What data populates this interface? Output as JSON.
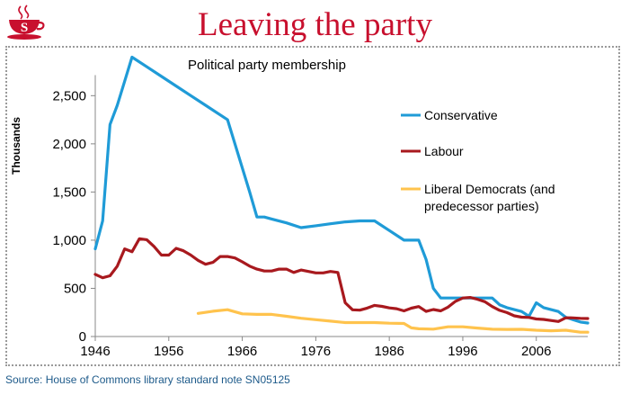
{
  "header": {
    "title": "Leaving the party",
    "logo_icon": "steaming-cup-s-logo",
    "logo_letter": "S"
  },
  "footer": {
    "source": "Source: House of Commons library standard note SN05125"
  },
  "colors": {
    "title": "#c8102e",
    "conservative": "#1f9bd7",
    "labour": "#a8191e",
    "libdem": "#ffc34d",
    "source": "#1d5a8a"
  },
  "chart_data": {
    "type": "line",
    "title": "Political party membership",
    "ylabel": "Thousands",
    "xlabel": "",
    "xlim": [
      1946,
      2013
    ],
    "ylim": [
      0,
      2900
    ],
    "xticks": [
      1946,
      1956,
      1966,
      1976,
      1986,
      1996,
      2006
    ],
    "xtick_labels": [
      "1946",
      "1956",
      "1966",
      "1976",
      "1986",
      "1996",
      "2006"
    ],
    "yticks": [
      0,
      500,
      1000,
      1500,
      2000,
      2500
    ],
    "ytick_labels": [
      "0",
      "500",
      "1,000",
      "1,500",
      "2,000",
      "2,500"
    ],
    "grid": false,
    "legend_position": "right",
    "series": [
      {
        "name": "Conservative",
        "color": "#1f9bd7",
        "x": [
          1946,
          1947,
          1948,
          1949,
          1950,
          1951,
          1953,
          1955,
          1957,
          1959,
          1961,
          1963,
          1964,
          1967,
          1968,
          1969,
          1970,
          1972,
          1974,
          1976,
          1978,
          1980,
          1982,
          1984,
          1986,
          1988,
          1990,
          1991,
          1992,
          1993,
          1994,
          1996,
          1998,
          2000,
          2001,
          2002,
          2004,
          2005,
          2006,
          2007,
          2009,
          2010,
          2012,
          2013
        ],
        "y": [
          910,
          1200,
          2200,
          2400,
          2650,
          2900,
          2800,
          2700,
          2600,
          2500,
          2400,
          2300,
          2250,
          1500,
          1240,
          1240,
          1220,
          1180,
          1130,
          1150,
          1170,
          1190,
          1200,
          1200,
          1100,
          1000,
          1000,
          800,
          500,
          400,
          400,
          400,
          400,
          400,
          330,
          300,
          260,
          210,
          350,
          300,
          260,
          200,
          150,
          140
        ]
      },
      {
        "name": "Labour",
        "color": "#a8191e",
        "x": [
          1946,
          1947,
          1948,
          1949,
          1950,
          1951,
          1952,
          1953,
          1954,
          1955,
          1956,
          1957,
          1958,
          1959,
          1960,
          1961,
          1962,
          1963,
          1964,
          1965,
          1966,
          1967,
          1968,
          1969,
          1970,
          1971,
          1972,
          1973,
          1974,
          1975,
          1976,
          1977,
          1978,
          1979,
          1980,
          1981,
          1982,
          1983,
          1984,
          1985,
          1986,
          1987,
          1988,
          1989,
          1990,
          1991,
          1992,
          1993,
          1994,
          1995,
          1996,
          1997,
          1998,
          1999,
          2000,
          2001,
          2002,
          2003,
          2004,
          2005,
          2006,
          2007,
          2008,
          2009,
          2010,
          2011,
          2012,
          2013
        ],
        "y": [
          645,
          610,
          630,
          730,
          910,
          880,
          1015,
          1005,
          935,
          845,
          845,
          915,
          890,
          845,
          790,
          750,
          770,
          830,
          830,
          815,
          775,
          730,
          700,
          680,
          680,
          700,
          700,
          665,
          690,
          675,
          660,
          660,
          675,
          665,
          350,
          277,
          274,
          295,
          323,
          313,
          297,
          289,
          266,
          294,
          311,
          261,
          280,
          266,
          305,
          365,
          400,
          405,
          387,
          361,
          311,
          272,
          248,
          215,
          201,
          198,
          182,
          177,
          166,
          156,
          194,
          193,
          189,
          187
        ]
      },
      {
        "name": "Liberal Democrats (and predecessor parties)",
        "color": "#ffc34d",
        "x": [
          1960,
          1962,
          1964,
          1966,
          1968,
          1970,
          1972,
          1974,
          1976,
          1978,
          1980,
          1982,
          1984,
          1986,
          1988,
          1989,
          1990,
          1992,
          1994,
          1996,
          1998,
          2000,
          2002,
          2004,
          2006,
          2008,
          2010,
          2012,
          2013
        ],
        "y": [
          240,
          262,
          278,
          235,
          230,
          230,
          210,
          190,
          175,
          160,
          145,
          145,
          145,
          138,
          135,
          90,
          80,
          77,
          101,
          101,
          88,
          76,
          74,
          75,
          65,
          60,
          65,
          45,
          45
        ]
      }
    ]
  }
}
